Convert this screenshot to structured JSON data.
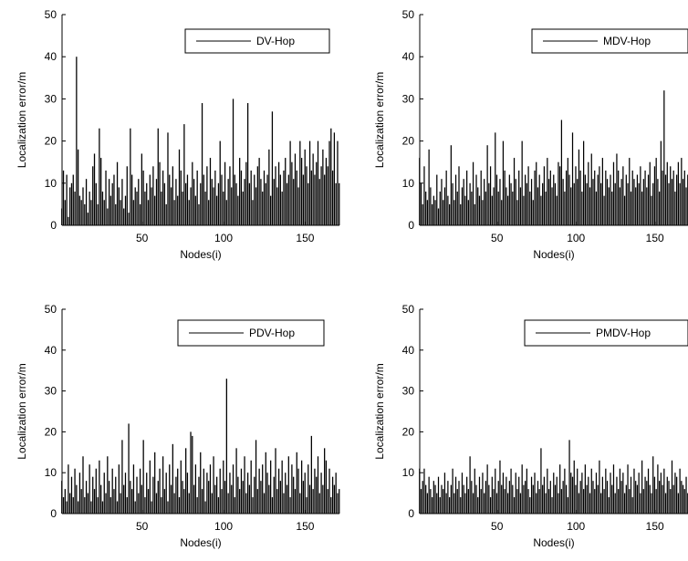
{
  "chart_data": [
    {
      "type": "bar",
      "xlabel": "Nodes(i)",
      "ylabel": "Localization error/m",
      "xlim": [
        1,
        171
      ],
      "ylim": [
        0,
        50
      ],
      "xticks": [
        50,
        100,
        150
      ],
      "yticks": [
        0,
        10,
        20,
        30,
        40,
        50
      ],
      "legend": "DV-Hop",
      "legend_position": "top-right",
      "series": [
        {
          "name": "DV-Hop",
          "values": [
            4,
            13,
            6,
            12,
            2,
            9,
            10,
            12,
            8,
            40,
            18,
            7,
            6,
            9,
            5,
            11,
            3,
            8,
            6,
            14,
            17,
            10,
            5,
            23,
            16,
            8,
            6,
            13,
            4,
            11,
            7,
            10,
            12,
            5,
            15,
            9,
            6,
            11,
            4,
            7,
            14,
            3,
            23,
            12,
            6,
            9,
            8,
            11,
            5,
            17,
            13,
            8,
            10,
            6,
            12,
            9,
            14,
            7,
            11,
            23,
            15,
            8,
            13,
            10,
            5,
            22,
            12,
            9,
            14,
            6,
            11,
            7,
            18,
            13,
            8,
            24,
            10,
            12,
            6,
            9,
            15,
            11,
            7,
            13,
            5,
            10,
            29,
            12,
            8,
            14,
            6,
            16,
            11,
            9,
            13,
            7,
            10,
            20,
            12,
            8,
            15,
            6,
            11,
            14,
            9,
            30,
            12,
            10,
            7,
            16,
            13,
            8,
            11,
            15,
            29,
            10,
            13,
            6,
            12,
            9,
            14,
            16,
            11,
            8,
            13,
            10,
            12,
            18,
            7,
            27,
            11,
            14,
            9,
            15,
            12,
            8,
            13,
            16,
            10,
            12,
            20,
            15,
            11,
            17,
            13,
            9,
            20,
            16,
            12,
            18,
            14,
            10,
            20,
            13,
            17,
            12,
            15,
            20,
            11,
            14,
            18,
            12,
            16,
            14,
            20,
            23,
            13,
            22,
            10,
            20,
            10
          ]
        }
      ]
    },
    {
      "type": "bar",
      "xlabel": "Nodes(i)",
      "ylabel": "Localization error/m",
      "xlim": [
        1,
        171
      ],
      "ylim": [
        0,
        50
      ],
      "xticks": [
        50,
        100,
        150
      ],
      "yticks": [
        0,
        10,
        20,
        30,
        40,
        50
      ],
      "legend": "MDV-Hop",
      "legend_position": "top-right",
      "series": [
        {
          "name": "MDV-Hop",
          "values": [
            16,
            10,
            5,
            14,
            8,
            6,
            18,
            9,
            5,
            7,
            6,
            12,
            4,
            8,
            11,
            6,
            9,
            13,
            7,
            5,
            19,
            10,
            6,
            12,
            8,
            14,
            5,
            9,
            11,
            7,
            13,
            6,
            10,
            8,
            15,
            5,
            12,
            9,
            7,
            13,
            6,
            11,
            8,
            19,
            10,
            14,
            7,
            9,
            22,
            12,
            8,
            11,
            6,
            20,
            13,
            9,
            7,
            12,
            10,
            8,
            16,
            11,
            6,
            13,
            9,
            20,
            7,
            12,
            10,
            14,
            8,
            11,
            6,
            13,
            15,
            9,
            12,
            7,
            10,
            14,
            8,
            16,
            11,
            13,
            9,
            12,
            10,
            7,
            15,
            14,
            25,
            11,
            8,
            13,
            16,
            12,
            9,
            22,
            10,
            14,
            11,
            18,
            13,
            8,
            20,
            12,
            10,
            15,
            9,
            17,
            11,
            13,
            8,
            12,
            14,
            10,
            16,
            7,
            13,
            11,
            9,
            12,
            8,
            15,
            10,
            17,
            13,
            9,
            11,
            14,
            7,
            12,
            10,
            16,
            8,
            13,
            11,
            9,
            12,
            10,
            14,
            8,
            11,
            13,
            9,
            12,
            15,
            7,
            10,
            14,
            16,
            11,
            8,
            20,
            13,
            32,
            12,
            15,
            10,
            14,
            11,
            13,
            8,
            12,
            15,
            10,
            16,
            11,
            13,
            9,
            12
          ]
        }
      ]
    },
    {
      "type": "bar",
      "xlabel": "Nodes(i)",
      "ylabel": "Localization error/m",
      "xlim": [
        1,
        171
      ],
      "ylim": [
        0,
        50
      ],
      "xticks": [
        50,
        100,
        150
      ],
      "yticks": [
        0,
        10,
        20,
        30,
        40,
        50
      ],
      "legend": "PDV-Hop",
      "legend_position": "top-right",
      "series": [
        {
          "name": "PDV-Hop",
          "values": [
            8,
            4,
            6,
            3,
            12,
            5,
            9,
            4,
            11,
            7,
            3,
            10,
            6,
            14,
            4,
            8,
            5,
            12,
            3,
            9,
            6,
            11,
            4,
            13,
            7,
            3,
            10,
            5,
            14,
            8,
            4,
            11,
            6,
            9,
            3,
            12,
            5,
            18,
            7,
            10,
            4,
            22,
            8,
            6,
            12,
            3,
            9,
            5,
            11,
            7,
            18,
            4,
            10,
            6,
            13,
            3,
            9,
            15,
            5,
            8,
            11,
            4,
            14,
            6,
            10,
            3,
            12,
            7,
            17,
            5,
            9,
            11,
            4,
            13,
            8,
            6,
            16,
            10,
            5,
            20,
            19,
            7,
            12,
            4,
            9,
            15,
            6,
            11,
            3,
            10,
            8,
            12,
            5,
            14,
            7,
            9,
            4,
            11,
            6,
            13,
            8,
            33,
            5,
            10,
            7,
            12,
            4,
            16,
            9,
            6,
            11,
            8,
            14,
            5,
            10,
            7,
            13,
            4,
            9,
            18,
            6,
            11,
            8,
            12,
            5,
            15,
            10,
            7,
            13,
            4,
            9,
            16,
            6,
            11,
            8,
            13,
            5,
            10,
            7,
            14,
            4,
            12,
            9,
            6,
            15,
            11,
            5,
            13,
            8,
            10,
            4,
            12,
            7,
            19,
            6,
            11,
            9,
            14,
            5,
            10,
            7,
            16,
            13,
            6,
            11,
            4,
            9,
            7,
            10,
            5,
            6
          ]
        }
      ]
    },
    {
      "type": "bar",
      "xlabel": "Nodes(i)",
      "ylabel": "Localization error/m",
      "xlim": [
        1,
        171
      ],
      "ylim": [
        0,
        50
      ],
      "xticks": [
        50,
        100,
        150
      ],
      "yticks": [
        0,
        10,
        20,
        30,
        40,
        50
      ],
      "legend": "PMDV-Hop",
      "legend_position": "top-right",
      "series": [
        {
          "name": "PMDV-Hop",
          "values": [
            11,
            6,
            8,
            11,
            7,
            5,
            9,
            6,
            4,
            8,
            7,
            5,
            9,
            4,
            7,
            6,
            10,
            5,
            8,
            4,
            7,
            11,
            5,
            9,
            6,
            8,
            4,
            10,
            7,
            5,
            9,
            6,
            14,
            8,
            5,
            11,
            7,
            4,
            9,
            6,
            10,
            5,
            8,
            12,
            7,
            4,
            9,
            6,
            11,
            5,
            8,
            13,
            7,
            10,
            6,
            9,
            5,
            8,
            11,
            7,
            4,
            10,
            6,
            9,
            5,
            12,
            7,
            8,
            11,
            6,
            4,
            9,
            7,
            10,
            5,
            8,
            6,
            16,
            7,
            9,
            5,
            11,
            6,
            8,
            4,
            10,
            7,
            9,
            5,
            12,
            6,
            8,
            11,
            7,
            4,
            18,
            10,
            9,
            13,
            7,
            11,
            5,
            8,
            10,
            6,
            12,
            7,
            9,
            5,
            11,
            8,
            6,
            10,
            7,
            13,
            5,
            9,
            6,
            11,
            8,
            4,
            10,
            7,
            12,
            5,
            9,
            6,
            11,
            8,
            10,
            5,
            7,
            12,
            6,
            9,
            4,
            11,
            8,
            7,
            10,
            5,
            13,
            6,
            9,
            8,
            11,
            7,
            5,
            14,
            9,
            6,
            12,
            8,
            10,
            7,
            11,
            5,
            9,
            8,
            6,
            13,
            7,
            10,
            9,
            5,
            11,
            8,
            7,
            6,
            9,
            5
          ]
        }
      ]
    }
  ]
}
